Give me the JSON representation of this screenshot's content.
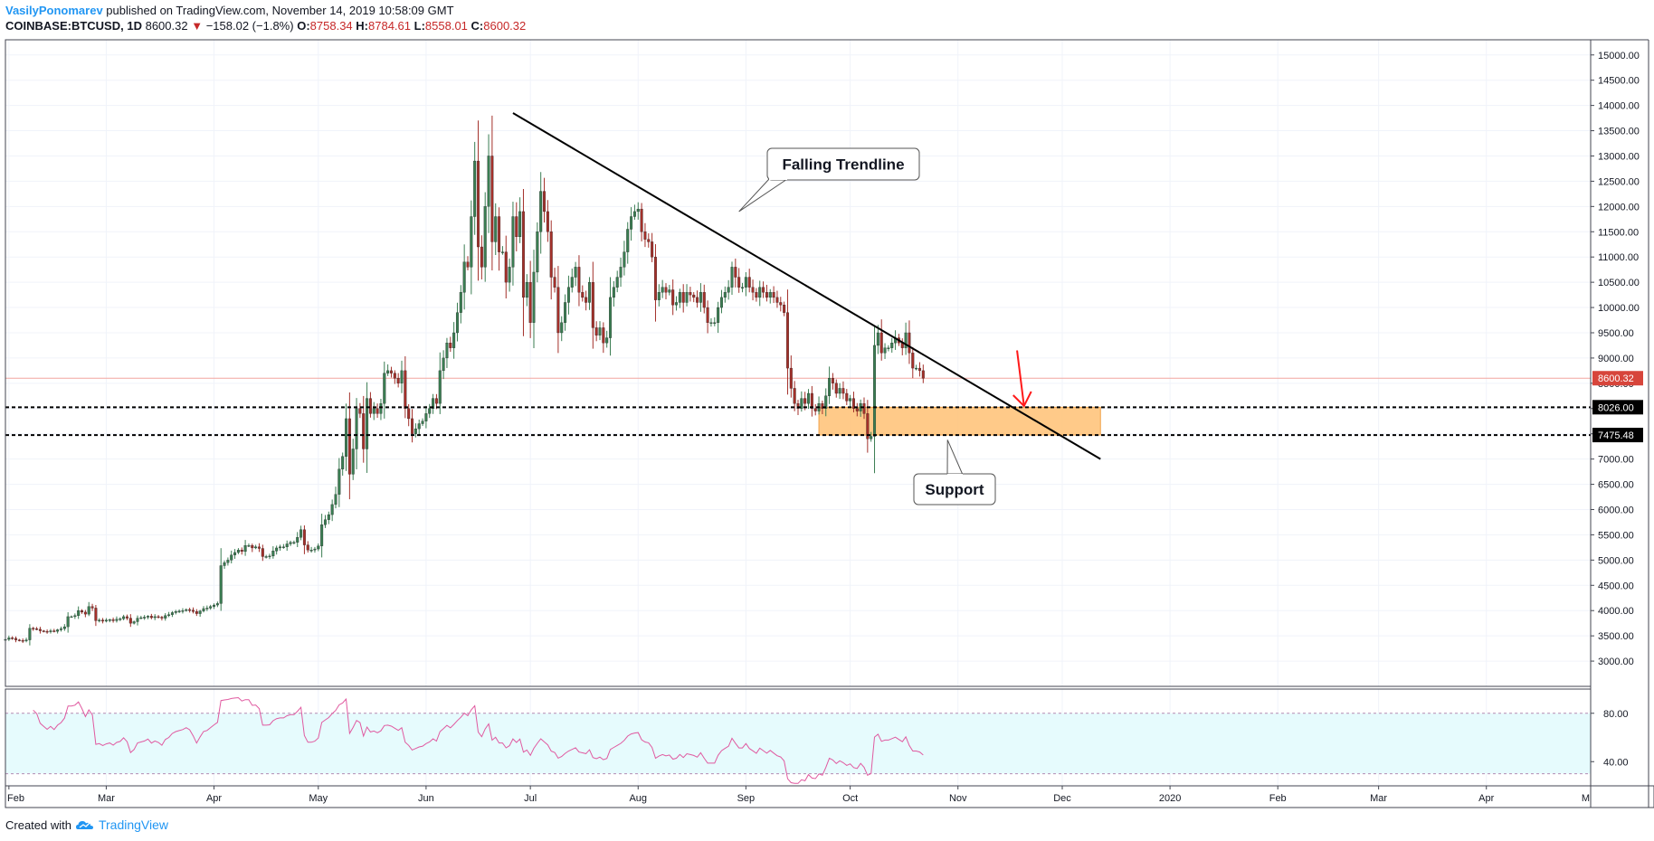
{
  "header": {
    "author": "VasilyPonomarev",
    "published": "published on TradingView.com, November 14, 2019 10:58:09 GMT",
    "symbol": "COINBASE:BTCUSD, 1D",
    "last": "8600.32",
    "change_arrow": "▼",
    "change": "−158.02 (−1.8%)",
    "o_label": "O:",
    "o_value": "8758.34",
    "h_label": "H:",
    "h_value": "8784.61",
    "l_label": "L:",
    "l_value": "8558.01",
    "c_label": "C:",
    "c_value": "8600.32"
  },
  "footer": {
    "created": "Created with",
    "brand": "TradingView"
  },
  "colors": {
    "up": "#3a7d52",
    "down": "#a3302a",
    "rsi": "#e05aa0",
    "rsi_band": "#e6fbfd",
    "zone": "#ffc174",
    "trend_arrow": "#ff1a1a",
    "price_label": "#d7453b"
  },
  "chart_data": {
    "type": "candlestick",
    "x_axis": {
      "months": [
        {
          "label": "Feb",
          "date": "2019-02-01"
        },
        {
          "label": "Mar",
          "date": "2019-03-01"
        },
        {
          "label": "Apr",
          "date": "2019-04-01"
        },
        {
          "label": "May",
          "date": "2019-05-01"
        },
        {
          "label": "Jun",
          "date": "2019-06-01"
        },
        {
          "label": "Jul",
          "date": "2019-07-01"
        },
        {
          "label": "Aug",
          "date": "2019-08-01"
        },
        {
          "label": "Sep",
          "date": "2019-09-01"
        },
        {
          "label": "Oct",
          "date": "2019-10-01"
        },
        {
          "label": "Nov",
          "date": "2019-11-01"
        },
        {
          "label": "Dec",
          "date": "2019-12-01"
        },
        {
          "label": "2020",
          "date": "2020-01-01"
        },
        {
          "label": "Feb",
          "date": "2020-02-01"
        },
        {
          "label": "Mar",
          "date": "2020-03-01"
        },
        {
          "label": "Apr",
          "date": "2020-04-01"
        },
        {
          "label": "M",
          "date": "2020-05-01"
        }
      ],
      "range": [
        "2019-01-31",
        "2020-05-01"
      ]
    },
    "y_axis": {
      "range": [
        2500,
        15300
      ],
      "ticks": [
        "15000.00",
        "14500.00",
        "14000.00",
        "13500.00",
        "13000.00",
        "12500.00",
        "12000.00",
        "11500.00",
        "11000.00",
        "10500.00",
        "10000.00",
        "9500.00",
        "9000.00",
        "8500.00",
        "8000.00",
        "7500.00",
        "7000.00",
        "6500.00",
        "6000.00",
        "5500.00",
        "5000.00",
        "4500.00",
        "4000.00",
        "3500.00",
        "3000.00"
      ]
    },
    "price_series": {
      "start_date": "2019-01-31",
      "close": [
        3430,
        3460,
        3450,
        3420,
        3410,
        3400,
        3420,
        3650,
        3640,
        3630,
        3600,
        3590,
        3580,
        3600,
        3590,
        3620,
        3640,
        3680,
        3880,
        3880,
        3900,
        4000,
        3970,
        3930,
        4080,
        4050,
        3800,
        3810,
        3790,
        3810,
        3820,
        3800,
        3830,
        3840,
        3880,
        3850,
        3750,
        3780,
        3850,
        3860,
        3870,
        3890,
        3860,
        3880,
        3870,
        3850,
        3900,
        3920,
        3960,
        3980,
        3990,
        4000,
        4020,
        4010,
        3980,
        3940,
        3990,
        4040,
        4050,
        4080,
        4110,
        4140,
        4890,
        4950,
        5000,
        5100,
        5150,
        5200,
        5170,
        5290,
        5290,
        5240,
        5260,
        5230,
        5070,
        5070,
        5080,
        5180,
        5240,
        5260,
        5260,
        5320,
        5350,
        5350,
        5450,
        5600,
        5300,
        5200,
        5200,
        5220,
        5280,
        5700,
        5800,
        5900,
        6100,
        6300,
        6800,
        7050,
        7800,
        6700,
        7200,
        8000,
        7900,
        7200,
        8200,
        7900,
        8000,
        7900,
        8100,
        8700,
        8750,
        8700,
        8600,
        8500,
        8750,
        8000,
        7800,
        7500,
        7600,
        7700,
        7750,
        7900,
        8000,
        8200,
        8100,
        8750,
        9000,
        9300,
        9200,
        9500,
        9900,
        10300,
        10900,
        10800,
        11800,
        12900,
        11200,
        10800,
        12000,
        13000,
        11300,
        11800,
        11100,
        11100,
        10500,
        10800,
        11800,
        11400,
        11900,
        10200,
        10500,
        9700,
        10700,
        11500,
        12300,
        11900,
        11500,
        10600,
        10400,
        9500,
        9700,
        10100,
        10400,
        10600,
        10800,
        10300,
        10200,
        10100,
        10500,
        9600,
        9450,
        9600,
        9300,
        9400,
        10200,
        10400,
        10600,
        10800,
        11100,
        11550,
        11800,
        11900,
        11950,
        11500,
        11350,
        11300,
        11000,
        10150,
        10300,
        10400,
        10300,
        10350,
        10050,
        10100,
        10300,
        10100,
        10300,
        10250,
        10200,
        10100,
        10300,
        10000,
        9700,
        9700,
        9700,
        10000,
        10200,
        10300,
        10400,
        10800,
        10600,
        10400,
        10400,
        10600,
        10400,
        10300,
        10200,
        10400,
        10300,
        10200,
        10300,
        10200,
        10100,
        10050,
        9900,
        8800,
        8400,
        8100,
        8000,
        8200,
        8100,
        8300,
        8000,
        7950,
        8100,
        8000,
        8250,
        8600,
        8500,
        8300,
        8400,
        8300,
        8150,
        8200,
        8000,
        7950,
        8100,
        7900,
        7400,
        7450,
        9250,
        9500,
        9100,
        9200,
        9200,
        9300,
        9400,
        9300,
        9200,
        9500,
        9100,
        8800,
        8800,
        8750,
        8600
      ]
    },
    "rsi": {
      "ticks": [
        "80.00",
        "40.00"
      ],
      "band": [
        30,
        80
      ]
    },
    "levels": [
      {
        "price": 8026.0,
        "label": "8026.00"
      },
      {
        "price": 7475.48,
        "label": "7475.48"
      }
    ],
    "last_price_label": "8600.32",
    "trendline": {
      "from": {
        "date": "2019-06-26",
        "price": 13850
      },
      "to": {
        "date": "2019-12-12",
        "price": 7000
      }
    },
    "support_zone": {
      "from_date": "2019-09-22",
      "to_date": "2019-12-12",
      "top": 8026.0,
      "bottom": 7475.48
    },
    "annotations": [
      {
        "text": "Falling Trendline",
        "anchor": {
          "date": "2019-08-30",
          "price": 11900
        }
      },
      {
        "text": "Support",
        "anchor": {
          "date": "2019-10-29",
          "price": 7380
        }
      }
    ],
    "arrow": {
      "from": {
        "date": "2019-11-18",
        "price": 9150
      },
      "to": {
        "date": "2019-11-20",
        "price": 8050
      }
    }
  }
}
